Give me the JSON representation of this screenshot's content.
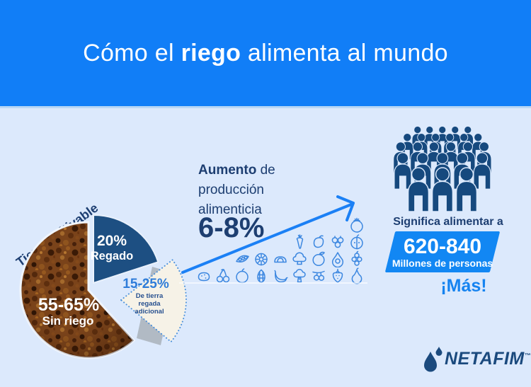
{
  "colors": {
    "header_blue": "#117ef7",
    "background": "#dce9fc",
    "navy_text": "#1d3e71",
    "bright_blue": "#1583f0",
    "pie_slice_blue": "#1d4f82",
    "crowd_navy": "#16497e",
    "box_blue": "#1287f3",
    "produce_icon_blue": "#3c87e0",
    "wedge_cream": "#f6f2e7",
    "wedge_dash_blue": "#4a90db",
    "soil_brown": "#7a431a"
  },
  "header": {
    "title_pre": "Cómo el ",
    "title_highlight": "riego",
    "title_post": " alimenta al mundo"
  },
  "chart_data": {
    "type": "pie",
    "title": "Tierra cultivable",
    "labels": [
      "Regado",
      "De tierra regada adicional",
      "Sin riego"
    ],
    "value_labels": [
      "20%",
      "15-25%",
      "55-65%"
    ],
    "values": [
      20,
      20,
      60
    ],
    "legend_position": "in-slice",
    "annotations": [
      {
        "text": "Aumento de producción alimenticia",
        "value": "6-8%"
      },
      {
        "text": "Significa alimentar a",
        "value": "620-840",
        "unit": "Millones de personas",
        "emphasis": "¡Más!"
      }
    ]
  },
  "pie": {
    "label": "Tierra cultivable",
    "slices": [
      {
        "id": "regado",
        "value_label": "20%",
        "sublabel": "Regado"
      },
      {
        "id": "regada-adicional",
        "value_label": "15-25%",
        "sub_lines": [
          "De tierra",
          "regada",
          "adicional"
        ]
      },
      {
        "id": "sin-riego",
        "value_label": "55-65%",
        "sublabel": "Sin riego"
      }
    ]
  },
  "growth": {
    "heading_bold": "Aumento",
    "heading_rest": " de",
    "heading_line2": "producción",
    "heading_line3": "alimenticia",
    "value": "6-8%",
    "produce_rows": [
      [
        "tomato"
      ],
      [
        "carrot",
        "mango",
        "blueberries",
        "apple-half"
      ],
      [
        "peas",
        "kiwi",
        "bread",
        "cauliflower",
        "lime",
        "avocado",
        "grapes"
      ],
      [
        "potato",
        "cherries",
        "apple",
        "corn",
        "bananas",
        "broccoli",
        "olives",
        "strawberry",
        "pear"
      ]
    ]
  },
  "impact": {
    "caption": "Significa alimentar a",
    "value": "620-840",
    "unit": "Millones de personas",
    "more_label": "¡Más!",
    "crowd_rows": [
      {
        "count": 5,
        "height": 34
      },
      {
        "count": 6,
        "height": 38
      },
      {
        "count": 6,
        "height": 45
      },
      {
        "count": 5,
        "height": 53
      },
      {
        "count": 3,
        "height": 64
      }
    ]
  },
  "footer": {
    "brand": "NETAFIM",
    "trademark": "™"
  }
}
